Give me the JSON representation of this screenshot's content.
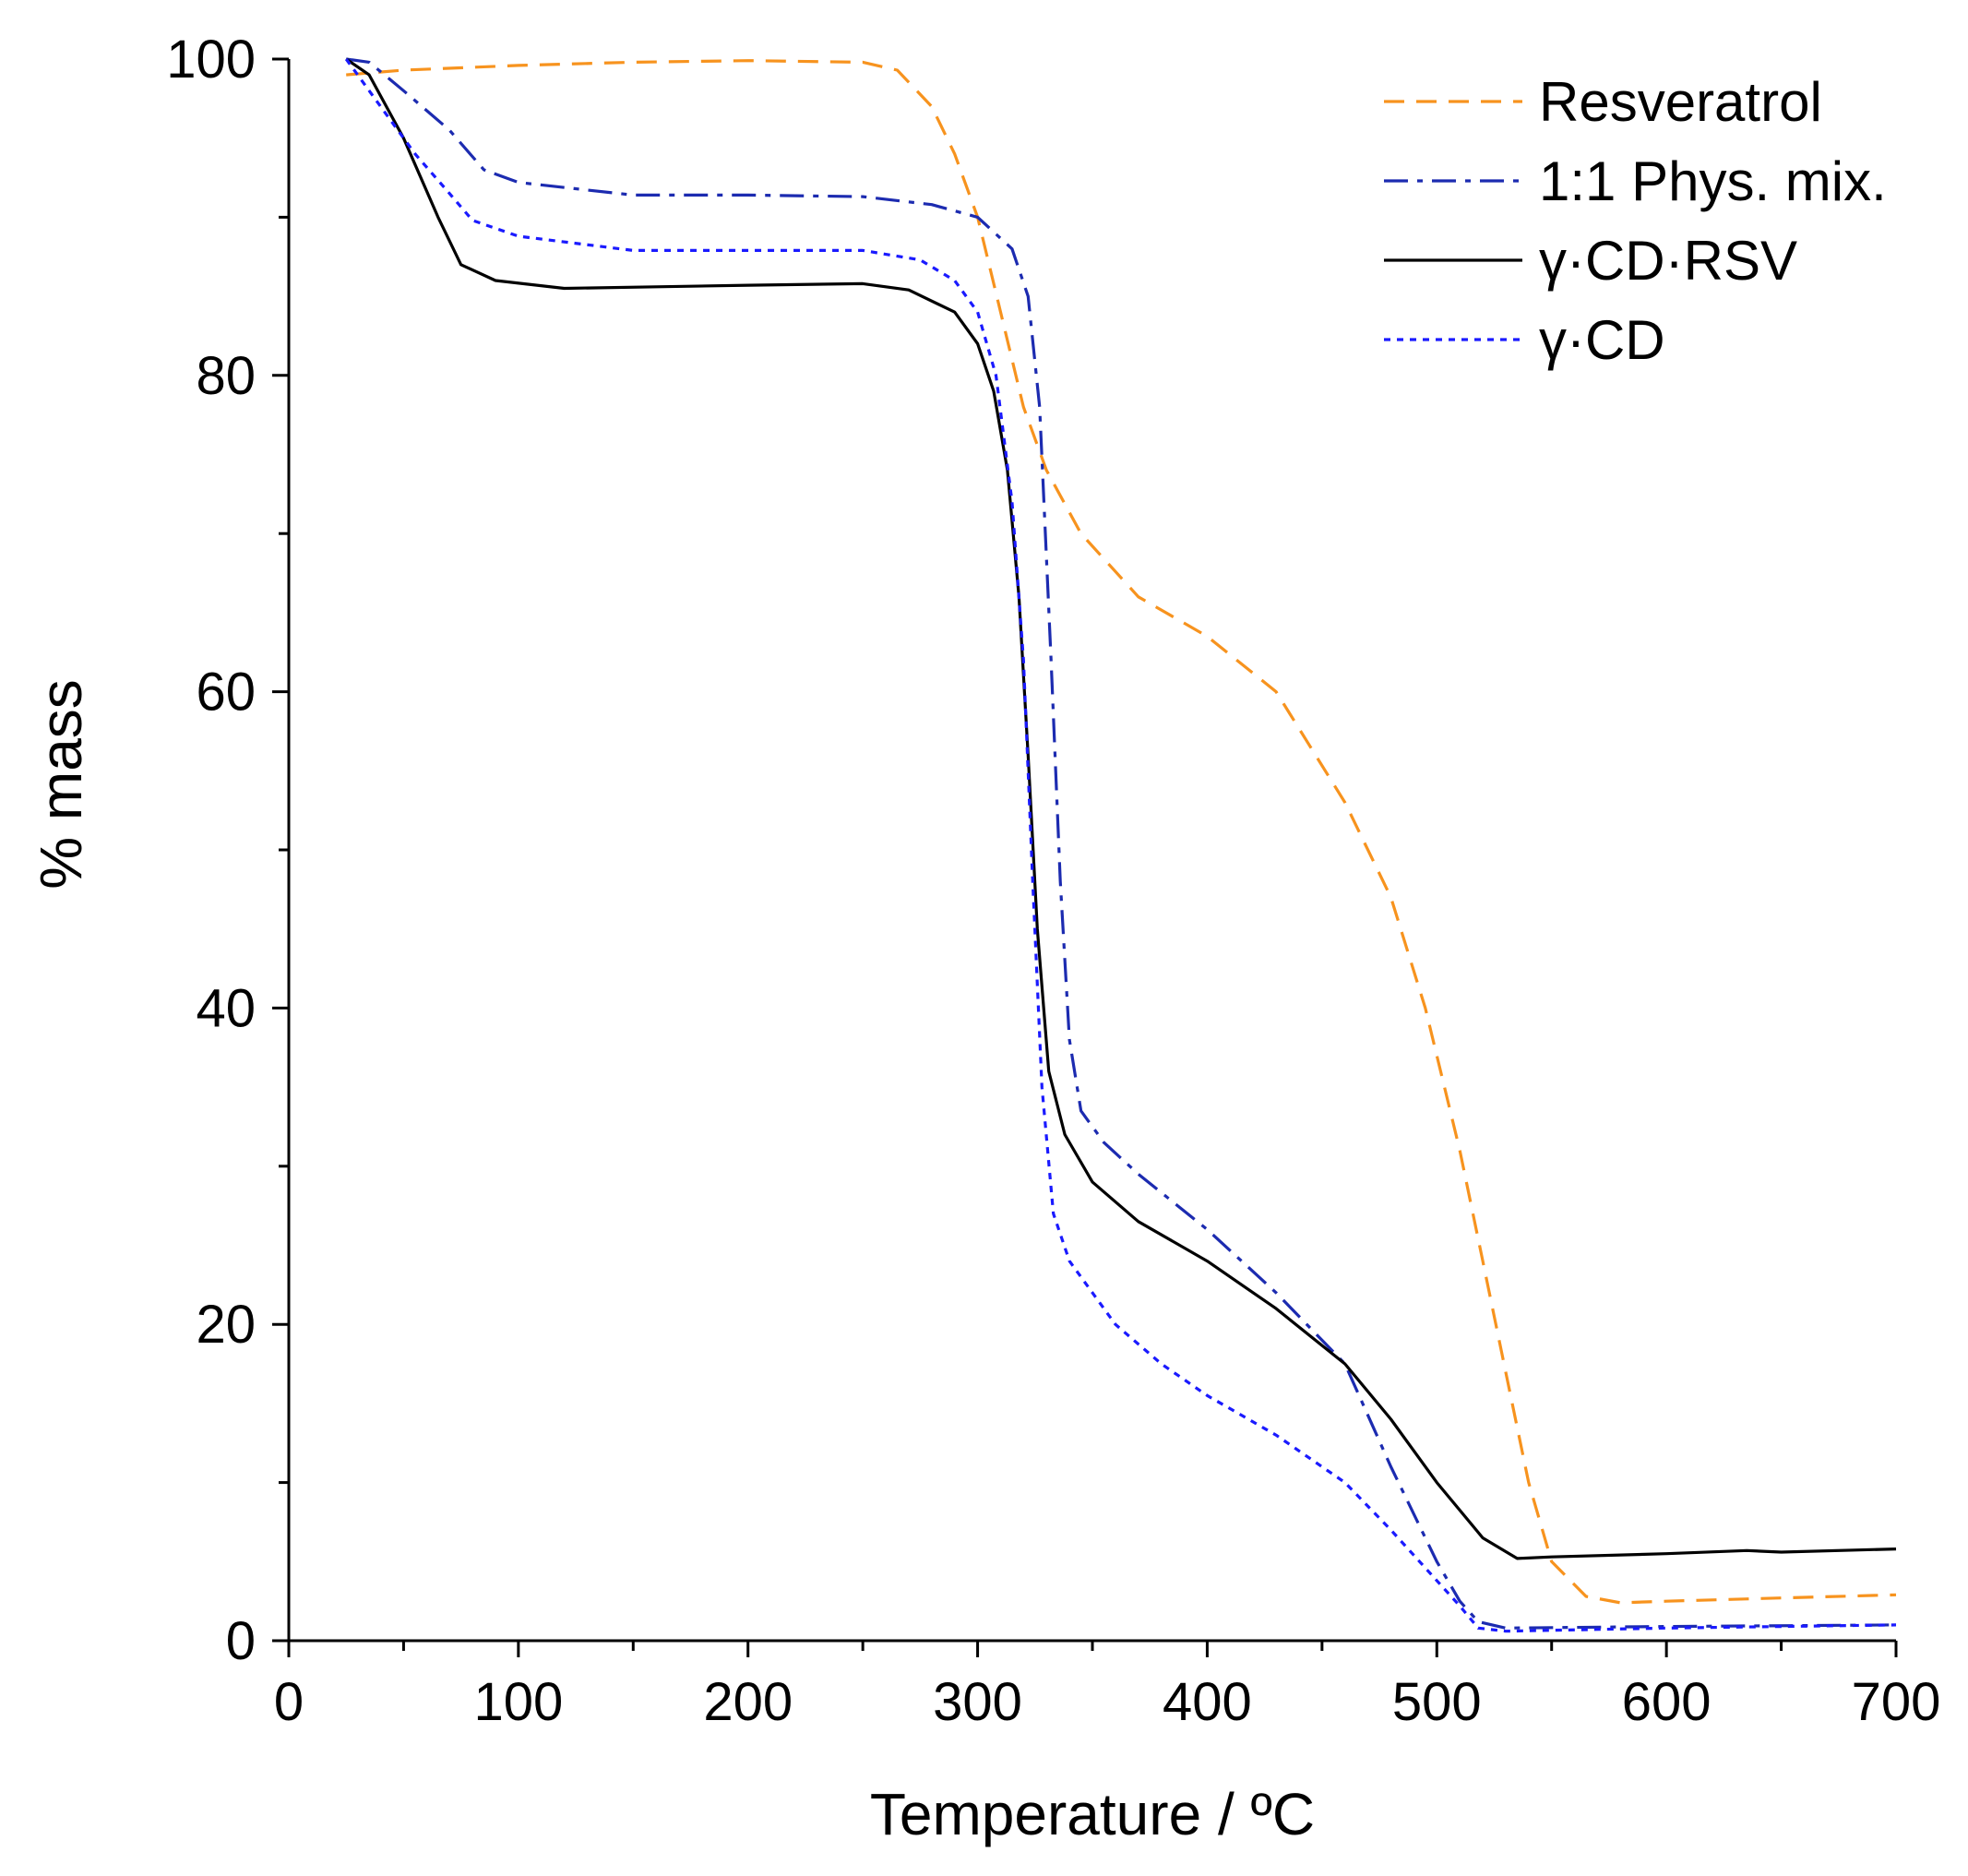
{
  "chart_data": {
    "type": "line",
    "title": "",
    "xlabel": "Temperature / ºC",
    "ylabel": "% mass",
    "xlim": [
      0,
      700
    ],
    "ylim": [
      0,
      100
    ],
    "x_ticks": [
      "0",
      "100",
      "200",
      "300",
      "400",
      "500",
      "600",
      "700"
    ],
    "y_ticks": [
      "0",
      "20",
      "40",
      "60",
      "80",
      "100"
    ],
    "grid": false,
    "legend_position": "top-right",
    "series": [
      {
        "name": "Resveratrol",
        "color": "#f7931e",
        "dash": "dashed",
        "points": [
          [
            25,
            99
          ],
          [
            50,
            99.3
          ],
          [
            100,
            99.6
          ],
          [
            150,
            99.8
          ],
          [
            200,
            99.9
          ],
          [
            250,
            99.8
          ],
          [
            265,
            99.3
          ],
          [
            280,
            97
          ],
          [
            290,
            94
          ],
          [
            300,
            90
          ],
          [
            310,
            84
          ],
          [
            320,
            78
          ],
          [
            330,
            74
          ],
          [
            345,
            70
          ],
          [
            370,
            66
          ],
          [
            400,
            63.5
          ],
          [
            430,
            60
          ],
          [
            460,
            53
          ],
          [
            480,
            47
          ],
          [
            495,
            40
          ],
          [
            510,
            31
          ],
          [
            520,
            24
          ],
          [
            530,
            17
          ],
          [
            540,
            10
          ],
          [
            550,
            5
          ],
          [
            565,
            2.8
          ],
          [
            580,
            2.4
          ],
          [
            600,
            2.5
          ],
          [
            650,
            2.7
          ],
          [
            700,
            2.9
          ]
        ]
      },
      {
        "name": "1:1 Phys. mix.",
        "color": "#1c2bb0",
        "dash": "dashdot",
        "points": [
          [
            25,
            100
          ],
          [
            35,
            99.8
          ],
          [
            50,
            98
          ],
          [
            70,
            95.5
          ],
          [
            85,
            93
          ],
          [
            100,
            92.2
          ],
          [
            150,
            91.4
          ],
          [
            200,
            91.4
          ],
          [
            250,
            91.3
          ],
          [
            280,
            90.8
          ],
          [
            300,
            90
          ],
          [
            315,
            88
          ],
          [
            322,
            85
          ],
          [
            327,
            78
          ],
          [
            332,
            62
          ],
          [
            336,
            48
          ],
          [
            340,
            38
          ],
          [
            345,
            33.5
          ],
          [
            355,
            31.5
          ],
          [
            370,
            29.5
          ],
          [
            400,
            26
          ],
          [
            430,
            22
          ],
          [
            460,
            17.5
          ],
          [
            480,
            11
          ],
          [
            500,
            5
          ],
          [
            510,
            2.5
          ],
          [
            518,
            1.2
          ],
          [
            530,
            0.8
          ],
          [
            600,
            0.9
          ],
          [
            700,
            1.0
          ]
        ]
      },
      {
        "name": "γ·CD·RSV",
        "color": "#000000",
        "dash": "solid",
        "points": [
          [
            25,
            100
          ],
          [
            35,
            99
          ],
          [
            50,
            95
          ],
          [
            65,
            90
          ],
          [
            75,
            87
          ],
          [
            90,
            86
          ],
          [
            120,
            85.5
          ],
          [
            160,
            85.6
          ],
          [
            200,
            85.7
          ],
          [
            250,
            85.8
          ],
          [
            270,
            85.4
          ],
          [
            290,
            84
          ],
          [
            300,
            82
          ],
          [
            307,
            79
          ],
          [
            313,
            74
          ],
          [
            318,
            66
          ],
          [
            322,
            56
          ],
          [
            326,
            45
          ],
          [
            331,
            36
          ],
          [
            338,
            32
          ],
          [
            350,
            29
          ],
          [
            370,
            26.5
          ],
          [
            400,
            24
          ],
          [
            430,
            21
          ],
          [
            460,
            17.5
          ],
          [
            480,
            14
          ],
          [
            500,
            10
          ],
          [
            520,
            6.5
          ],
          [
            535,
            5.2
          ],
          [
            550,
            5.3
          ],
          [
            600,
            5.5
          ],
          [
            635,
            5.7
          ],
          [
            650,
            5.6
          ],
          [
            700,
            5.8
          ]
        ]
      },
      {
        "name": "γ·CD",
        "color": "#1a1aff",
        "dash": "dotted",
        "points": [
          [
            25,
            100
          ],
          [
            40,
            97
          ],
          [
            55,
            94
          ],
          [
            70,
            91.5
          ],
          [
            80,
            89.8
          ],
          [
            100,
            88.8
          ],
          [
            150,
            87.9
          ],
          [
            200,
            87.9
          ],
          [
            250,
            87.9
          ],
          [
            275,
            87.3
          ],
          [
            290,
            86
          ],
          [
            300,
            84
          ],
          [
            308,
            80
          ],
          [
            315,
            72
          ],
          [
            320,
            62
          ],
          [
            324,
            48
          ],
          [
            328,
            35
          ],
          [
            333,
            27
          ],
          [
            340,
            24
          ],
          [
            360,
            20
          ],
          [
            380,
            17.5
          ],
          [
            400,
            15.5
          ],
          [
            430,
            13
          ],
          [
            460,
            10
          ],
          [
            480,
            7
          ],
          [
            500,
            3.8
          ],
          [
            510,
            2.2
          ],
          [
            518,
            0.8
          ],
          [
            530,
            0.6
          ],
          [
            600,
            0.8
          ],
          [
            700,
            1.0
          ]
        ]
      }
    ]
  }
}
